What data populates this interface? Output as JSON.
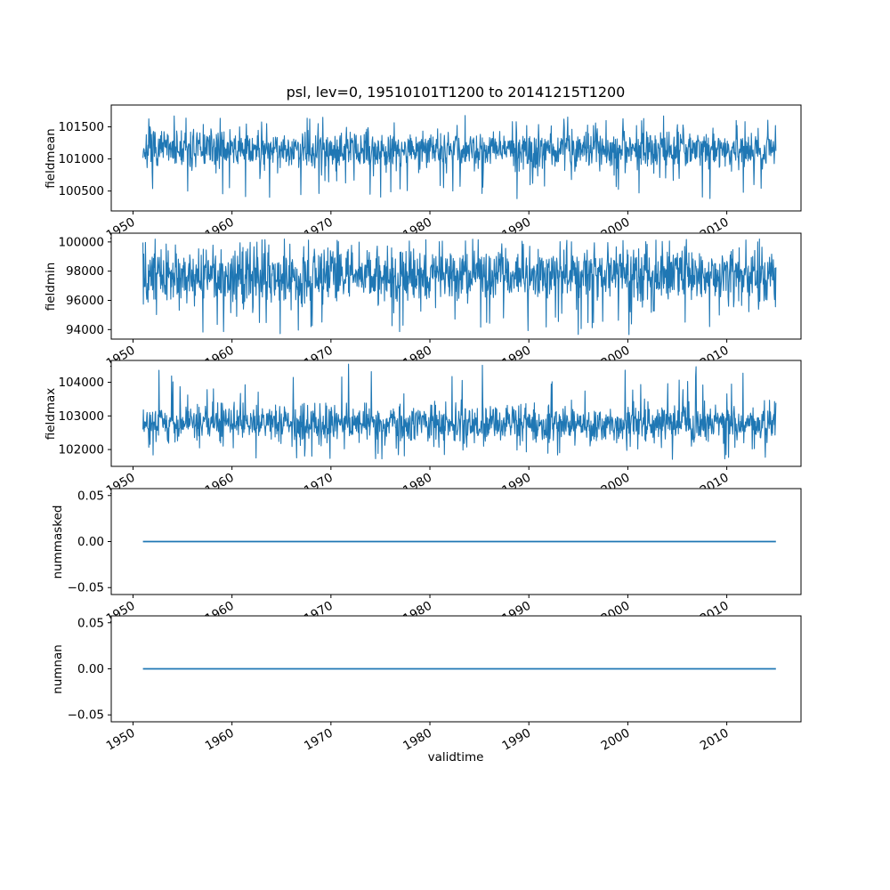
{
  "figure": {
    "title": "psl, lev=0, 19510101T1200 to 20141215T1200",
    "xlabel": "validtime",
    "background_color": "#ffffff",
    "axes_color": "#000000",
    "line_color": "#1f77b4",
    "xlim": [
      1947.8,
      2017.5
    ],
    "x_ticks": [
      1950,
      1960,
      1970,
      1980,
      1990,
      2000,
      2010
    ],
    "x_tick_labels": [
      "1950",
      "1960",
      "1970",
      "1980",
      "1990",
      "2000",
      "2010"
    ],
    "x_tick_rotation_deg": 30
  },
  "chart_data": [
    {
      "type": "line",
      "ylabel": "fieldmean",
      "color": "#1f77b4",
      "x_range": [
        1951.0,
        2014.96
      ],
      "ylim": [
        100190,
        101840
      ],
      "yticks": [
        100500,
        101000,
        101500
      ],
      "ytick_labels": [
        "100500",
        "101000",
        "101500"
      ],
      "series": {
        "kind": "noisy",
        "mean": 101150,
        "typical_band": [
          100820,
          101530
        ],
        "extremes": [
          100380,
          101680
        ],
        "points": 1500,
        "seed": 7
      }
    },
    {
      "type": "line",
      "ylabel": "fieldmin",
      "color": "#1f77b4",
      "x_range": [
        1951.0,
        2014.96
      ],
      "ylim": [
        93350,
        100600
      ],
      "yticks": [
        94000,
        96000,
        98000,
        100000
      ],
      "ytick_labels": [
        "94000",
        "96000",
        "98000",
        "100000"
      ],
      "series": {
        "kind": "noisy",
        "mean": 97700,
        "typical_band": [
          95400,
          99900
        ],
        "extremes": [
          93560,
          100250
        ],
        "points": 1500,
        "seed": 13
      }
    },
    {
      "type": "line",
      "ylabel": "fieldmax",
      "color": "#1f77b4",
      "x_range": [
        1951.0,
        2014.96
      ],
      "ylim": [
        101500,
        104650
      ],
      "yticks": [
        102000,
        103000,
        104000
      ],
      "ytick_labels": [
        "102000",
        "103000",
        "104000"
      ],
      "series": {
        "kind": "noisy",
        "mean": 102780,
        "typical_band": [
          102150,
          103450
        ],
        "extremes": [
          101700,
          104560
        ],
        "points": 1500,
        "seed": 21
      }
    },
    {
      "type": "line",
      "ylabel": "nummasked",
      "color": "#1f77b4",
      "x_range": [
        1951.0,
        2014.96
      ],
      "ylim": [
        -0.0575,
        0.0575
      ],
      "yticks": [
        0.05,
        0.0,
        -0.05
      ],
      "ytick_labels": [
        "0.05",
        "0.00",
        "−0.05"
      ],
      "series": {
        "kind": "constant",
        "value": 0.0
      }
    },
    {
      "type": "line",
      "ylabel": "numnan",
      "color": "#1f77b4",
      "x_range": [
        1951.0,
        2014.96
      ],
      "ylim": [
        -0.0575,
        0.0575
      ],
      "yticks": [
        0.05,
        0.0,
        -0.05
      ],
      "ytick_labels": [
        "0.05",
        "0.00",
        "−0.05"
      ],
      "series": {
        "kind": "constant",
        "value": 0.0
      }
    }
  ]
}
